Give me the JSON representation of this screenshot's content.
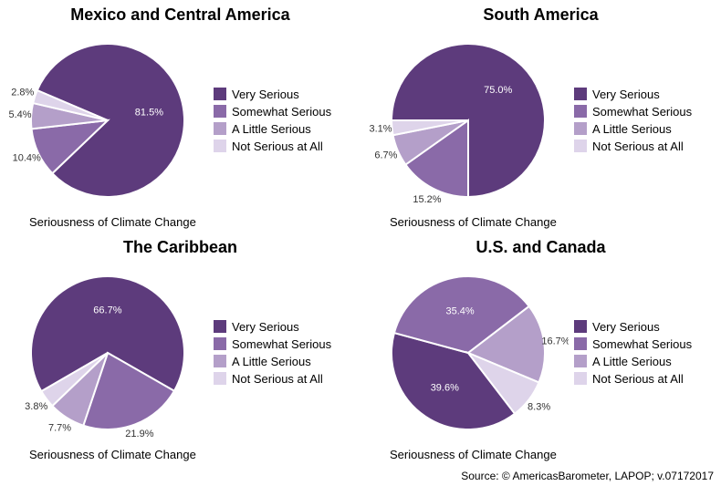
{
  "background_color": "#ffffff",
  "text_color": "#000000",
  "title_fontsize": 18,
  "title_fontweight": "bold",
  "legend_fontsize": 13,
  "caption_fontsize": 13,
  "source_fontsize": 12,
  "pie_radius": 84,
  "slice_border_color": "#ffffff",
  "slice_border_width": 2,
  "categories": [
    "Very Serious",
    "Somewhat Serious",
    "A Little Serious",
    "Not Serious at All"
  ],
  "category_colors": [
    "#5d3b7c",
    "#8a6aa8",
    "#b49fc9",
    "#ded4ea"
  ],
  "charts": [
    {
      "title": "Mexico and Central America",
      "caption": "Seriousness of Climate Change",
      "values": [
        81.5,
        10.4,
        5.4,
        2.8
      ],
      "labels": [
        "81.5%",
        "10.4%",
        "5.4%",
        "2.8%"
      ],
      "label_placement": [
        "in",
        "out",
        "out",
        "out"
      ]
    },
    {
      "title": "South America",
      "caption": "Seriousness of Climate Change",
      "values": [
        75.0,
        15.2,
        6.7,
        3.1
      ],
      "labels": [
        "75.0%",
        "15.2%",
        "6.7%",
        "3.1%"
      ],
      "label_placement": [
        "in",
        "out",
        "out",
        "out"
      ]
    },
    {
      "title": "The Caribbean",
      "caption": "Seriousness of Climate Change",
      "values": [
        66.7,
        21.9,
        7.7,
        3.8
      ],
      "labels": [
        "66.7%",
        "21.9%",
        "7.7%",
        "3.8%"
      ],
      "label_placement": [
        "in",
        "out",
        "out",
        "out"
      ]
    },
    {
      "title": "U.S. and Canada",
      "caption": "Seriousness of Climate Change",
      "values": [
        39.6,
        35.4,
        16.7,
        8.3
      ],
      "labels": [
        "39.6%",
        "35.4%",
        "16.7%",
        "8.3%"
      ],
      "label_placement": [
        "in",
        "in",
        "out",
        "out"
      ]
    }
  ],
  "source_text": "Source: © AmericasBarometer, LAPOP; v.07172017"
}
